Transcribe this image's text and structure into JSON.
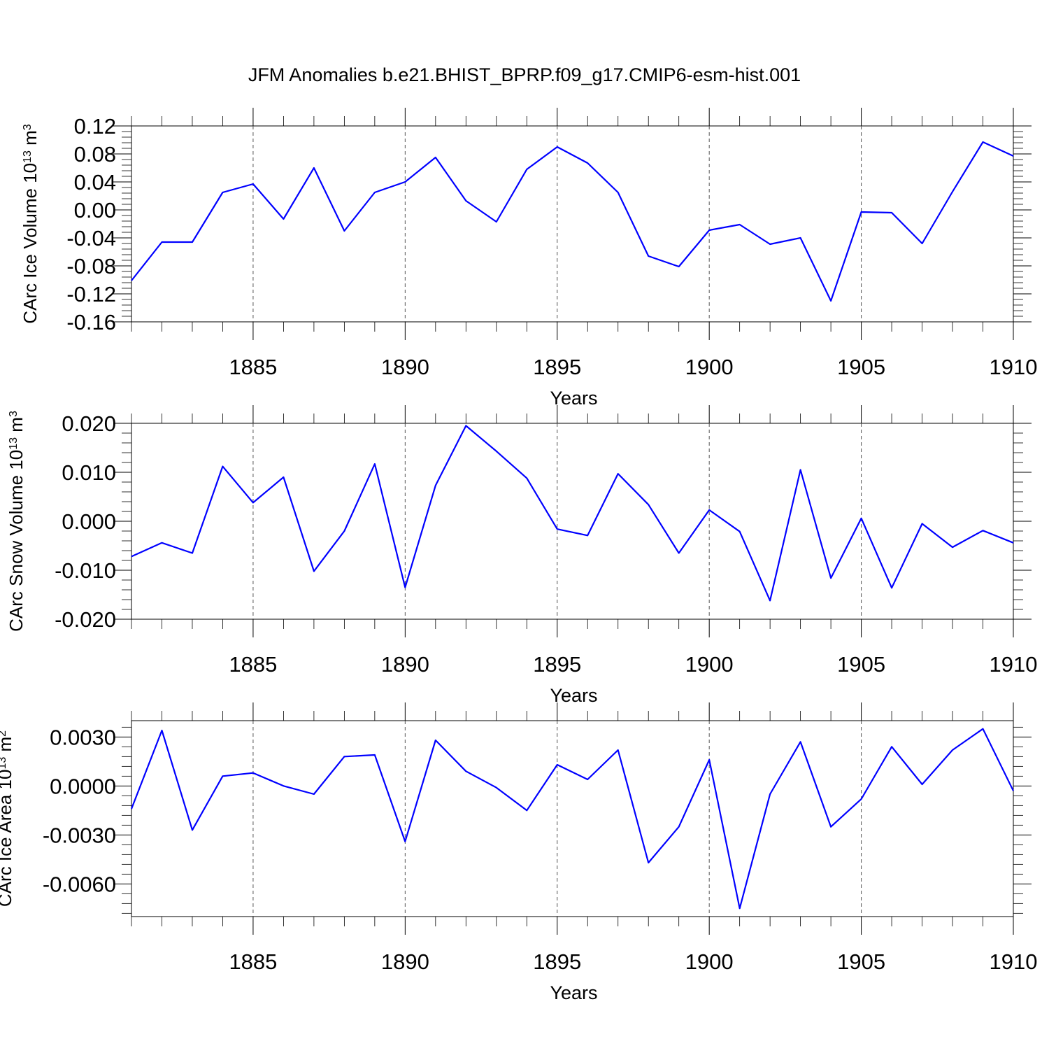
{
  "title": "JFM Anomalies b.e21.BHIST_BPRP.f09_g17.CMIP6-esm-hist.001",
  "colors": {
    "series": "#0000ff",
    "axis": "#000000",
    "grid": "#555555"
  },
  "chart_data": [
    {
      "type": "line",
      "xlabel": "Years",
      "ylabel_main": "CArc Ice Volume 10",
      "ylabel_exp": "13",
      "ylabel_unit": " m",
      "ylabel_unit_exp": "3",
      "xlim": [
        1881,
        1910
      ],
      "ylim": [
        -0.16,
        0.12
      ],
      "grid": "vertical dashed at major ticks",
      "y_major_ticks": [
        -0.16,
        -0.12,
        -0.08,
        -0.04,
        0.0,
        0.04,
        0.08,
        0.12
      ],
      "y_tick_labels": [
        "-0.16",
        "-0.12",
        "-0.08",
        "-0.04",
        "0.00",
        "0.04",
        "0.08",
        "0.12"
      ],
      "x_major_ticks": [
        1885,
        1890,
        1895,
        1900,
        1905,
        1910
      ],
      "x_tick_labels": [
        "1885",
        "1890",
        "1895",
        "1900",
        "1905",
        "1910"
      ],
      "x": [
        1881,
        1882,
        1883,
        1884,
        1885,
        1886,
        1887,
        1888,
        1889,
        1890,
        1891,
        1892,
        1893,
        1894,
        1895,
        1896,
        1897,
        1898,
        1899,
        1900,
        1901,
        1902,
        1903,
        1904,
        1905,
        1906,
        1907,
        1908,
        1909,
        1910
      ],
      "values": [
        -0.101,
        -0.046,
        -0.046,
        0.025,
        0.037,
        -0.013,
        0.06,
        -0.03,
        0.025,
        0.04,
        0.075,
        0.013,
        -0.017,
        0.058,
        0.09,
        0.067,
        0.025,
        -0.066,
        -0.081,
        -0.029,
        -0.021,
        -0.049,
        -0.04,
        -0.13,
        -0.003,
        -0.004,
        -0.048,
        0.026,
        0.097,
        0.077
      ]
    },
    {
      "type": "line",
      "xlabel": "Years",
      "ylabel_main": "CArc Snow Volume 10",
      "ylabel_exp": "13",
      "ylabel_unit": " m",
      "ylabel_unit_exp": "3",
      "xlim": [
        1881,
        1910
      ],
      "ylim": [
        -0.02,
        0.02
      ],
      "grid": "vertical dashed at major ticks",
      "y_major_ticks": [
        -0.02,
        -0.01,
        0.0,
        0.01,
        0.02
      ],
      "y_tick_labels": [
        "-0.020",
        "-0.010",
        "0.000",
        "0.010",
        "0.020"
      ],
      "x_major_ticks": [
        1885,
        1890,
        1895,
        1900,
        1905,
        1910
      ],
      "x_tick_labels": [
        "1885",
        "1890",
        "1895",
        "1900",
        "1905",
        "1910"
      ],
      "x": [
        1881,
        1882,
        1883,
        1884,
        1885,
        1886,
        1887,
        1888,
        1889,
        1890,
        1891,
        1892,
        1893,
        1894,
        1895,
        1896,
        1897,
        1898,
        1899,
        1900,
        1901,
        1902,
        1903,
        1904,
        1905,
        1906,
        1907,
        1908,
        1909,
        1910
      ],
      "values": [
        -0.0072,
        -0.0044,
        -0.0065,
        0.0112,
        0.0038,
        0.009,
        -0.0102,
        -0.002,
        0.0117,
        -0.0135,
        0.0073,
        0.0195,
        0.0143,
        0.0088,
        -0.0016,
        -0.0029,
        0.0097,
        0.0034,
        -0.0065,
        0.0023,
        -0.0021,
        -0.0162,
        0.0105,
        -0.0116,
        0.0006,
        -0.0136,
        -0.0005,
        -0.0053,
        -0.0019,
        -0.0044
      ]
    },
    {
      "type": "line",
      "xlabel": "Years",
      "ylabel_main": "CArc Ice Area 10",
      "ylabel_exp": "13",
      "ylabel_unit": " m",
      "ylabel_unit_exp": "2",
      "xlim": [
        1881,
        1910
      ],
      "ylim": [
        -0.008,
        0.004
      ],
      "grid": "vertical dashed at major ticks",
      "y_major_ticks": [
        -0.006,
        -0.003,
        0.0,
        0.003
      ],
      "y_tick_labels": [
        "-0.0060",
        "-0.0030",
        "0.0000",
        "0.0030"
      ],
      "x_major_ticks": [
        1885,
        1890,
        1895,
        1900,
        1905,
        1910
      ],
      "x_tick_labels": [
        "1885",
        "1890",
        "1895",
        "1900",
        "1905",
        "1910"
      ],
      "x": [
        1881,
        1882,
        1883,
        1884,
        1885,
        1886,
        1887,
        1888,
        1889,
        1890,
        1891,
        1892,
        1893,
        1894,
        1895,
        1896,
        1897,
        1898,
        1899,
        1900,
        1901,
        1902,
        1903,
        1904,
        1905,
        1906,
        1907,
        1908,
        1909,
        1910
      ],
      "values": [
        -0.0014,
        0.0034,
        -0.0027,
        0.0006,
        0.0008,
        0.0,
        -0.0005,
        0.0018,
        0.0019,
        -0.0034,
        0.0028,
        0.0009,
        -0.0001,
        -0.0015,
        0.0013,
        0.0004,
        0.0022,
        -0.0047,
        -0.0025,
        0.0016,
        -0.0075,
        -0.0005,
        0.0027,
        -0.0025,
        -0.0008,
        0.0024,
        0.0001,
        0.0022,
        0.0035,
        -0.0003
      ]
    }
  ]
}
